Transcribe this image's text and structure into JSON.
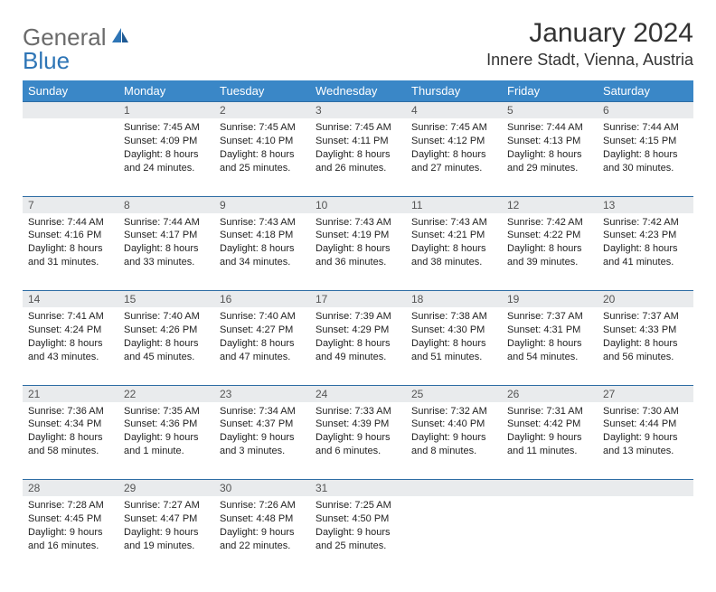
{
  "logo": {
    "general": "General",
    "blue": "Blue"
  },
  "title": "January 2024",
  "location": "Innere Stadt, Vienna, Austria",
  "colors": {
    "header_bg": "#3a87c7",
    "header_text": "#ffffff",
    "daynum_bg": "#e9ebed",
    "row_divider": "#2e6da4",
    "logo_blue": "#2e75b6",
    "logo_gray": "#6b6b6b"
  },
  "weekdays": [
    "Sunday",
    "Monday",
    "Tuesday",
    "Wednesday",
    "Thursday",
    "Friday",
    "Saturday"
  ],
  "weeks": [
    {
      "nums": [
        "",
        "1",
        "2",
        "3",
        "4",
        "5",
        "6"
      ],
      "cells": [
        {},
        {
          "sunrise": "Sunrise: 7:45 AM",
          "sunset": "Sunset: 4:09 PM",
          "daylight1": "Daylight: 8 hours",
          "daylight2": "and 24 minutes."
        },
        {
          "sunrise": "Sunrise: 7:45 AM",
          "sunset": "Sunset: 4:10 PM",
          "daylight1": "Daylight: 8 hours",
          "daylight2": "and 25 minutes."
        },
        {
          "sunrise": "Sunrise: 7:45 AM",
          "sunset": "Sunset: 4:11 PM",
          "daylight1": "Daylight: 8 hours",
          "daylight2": "and 26 minutes."
        },
        {
          "sunrise": "Sunrise: 7:45 AM",
          "sunset": "Sunset: 4:12 PM",
          "daylight1": "Daylight: 8 hours",
          "daylight2": "and 27 minutes."
        },
        {
          "sunrise": "Sunrise: 7:44 AM",
          "sunset": "Sunset: 4:13 PM",
          "daylight1": "Daylight: 8 hours",
          "daylight2": "and 29 minutes."
        },
        {
          "sunrise": "Sunrise: 7:44 AM",
          "sunset": "Sunset: 4:15 PM",
          "daylight1": "Daylight: 8 hours",
          "daylight2": "and 30 minutes."
        }
      ]
    },
    {
      "nums": [
        "7",
        "8",
        "9",
        "10",
        "11",
        "12",
        "13"
      ],
      "cells": [
        {
          "sunrise": "Sunrise: 7:44 AM",
          "sunset": "Sunset: 4:16 PM",
          "daylight1": "Daylight: 8 hours",
          "daylight2": "and 31 minutes."
        },
        {
          "sunrise": "Sunrise: 7:44 AM",
          "sunset": "Sunset: 4:17 PM",
          "daylight1": "Daylight: 8 hours",
          "daylight2": "and 33 minutes."
        },
        {
          "sunrise": "Sunrise: 7:43 AM",
          "sunset": "Sunset: 4:18 PM",
          "daylight1": "Daylight: 8 hours",
          "daylight2": "and 34 minutes."
        },
        {
          "sunrise": "Sunrise: 7:43 AM",
          "sunset": "Sunset: 4:19 PM",
          "daylight1": "Daylight: 8 hours",
          "daylight2": "and 36 minutes."
        },
        {
          "sunrise": "Sunrise: 7:43 AM",
          "sunset": "Sunset: 4:21 PM",
          "daylight1": "Daylight: 8 hours",
          "daylight2": "and 38 minutes."
        },
        {
          "sunrise": "Sunrise: 7:42 AM",
          "sunset": "Sunset: 4:22 PM",
          "daylight1": "Daylight: 8 hours",
          "daylight2": "and 39 minutes."
        },
        {
          "sunrise": "Sunrise: 7:42 AM",
          "sunset": "Sunset: 4:23 PM",
          "daylight1": "Daylight: 8 hours",
          "daylight2": "and 41 minutes."
        }
      ]
    },
    {
      "nums": [
        "14",
        "15",
        "16",
        "17",
        "18",
        "19",
        "20"
      ],
      "cells": [
        {
          "sunrise": "Sunrise: 7:41 AM",
          "sunset": "Sunset: 4:24 PM",
          "daylight1": "Daylight: 8 hours",
          "daylight2": "and 43 minutes."
        },
        {
          "sunrise": "Sunrise: 7:40 AM",
          "sunset": "Sunset: 4:26 PM",
          "daylight1": "Daylight: 8 hours",
          "daylight2": "and 45 minutes."
        },
        {
          "sunrise": "Sunrise: 7:40 AM",
          "sunset": "Sunset: 4:27 PM",
          "daylight1": "Daylight: 8 hours",
          "daylight2": "and 47 minutes."
        },
        {
          "sunrise": "Sunrise: 7:39 AM",
          "sunset": "Sunset: 4:29 PM",
          "daylight1": "Daylight: 8 hours",
          "daylight2": "and 49 minutes."
        },
        {
          "sunrise": "Sunrise: 7:38 AM",
          "sunset": "Sunset: 4:30 PM",
          "daylight1": "Daylight: 8 hours",
          "daylight2": "and 51 minutes."
        },
        {
          "sunrise": "Sunrise: 7:37 AM",
          "sunset": "Sunset: 4:31 PM",
          "daylight1": "Daylight: 8 hours",
          "daylight2": "and 54 minutes."
        },
        {
          "sunrise": "Sunrise: 7:37 AM",
          "sunset": "Sunset: 4:33 PM",
          "daylight1": "Daylight: 8 hours",
          "daylight2": "and 56 minutes."
        }
      ]
    },
    {
      "nums": [
        "21",
        "22",
        "23",
        "24",
        "25",
        "26",
        "27"
      ],
      "cells": [
        {
          "sunrise": "Sunrise: 7:36 AM",
          "sunset": "Sunset: 4:34 PM",
          "daylight1": "Daylight: 8 hours",
          "daylight2": "and 58 minutes."
        },
        {
          "sunrise": "Sunrise: 7:35 AM",
          "sunset": "Sunset: 4:36 PM",
          "daylight1": "Daylight: 9 hours",
          "daylight2": "and 1 minute."
        },
        {
          "sunrise": "Sunrise: 7:34 AM",
          "sunset": "Sunset: 4:37 PM",
          "daylight1": "Daylight: 9 hours",
          "daylight2": "and 3 minutes."
        },
        {
          "sunrise": "Sunrise: 7:33 AM",
          "sunset": "Sunset: 4:39 PM",
          "daylight1": "Daylight: 9 hours",
          "daylight2": "and 6 minutes."
        },
        {
          "sunrise": "Sunrise: 7:32 AM",
          "sunset": "Sunset: 4:40 PM",
          "daylight1": "Daylight: 9 hours",
          "daylight2": "and 8 minutes."
        },
        {
          "sunrise": "Sunrise: 7:31 AM",
          "sunset": "Sunset: 4:42 PM",
          "daylight1": "Daylight: 9 hours",
          "daylight2": "and 11 minutes."
        },
        {
          "sunrise": "Sunrise: 7:30 AM",
          "sunset": "Sunset: 4:44 PM",
          "daylight1": "Daylight: 9 hours",
          "daylight2": "and 13 minutes."
        }
      ]
    },
    {
      "nums": [
        "28",
        "29",
        "30",
        "31",
        "",
        "",
        ""
      ],
      "cells": [
        {
          "sunrise": "Sunrise: 7:28 AM",
          "sunset": "Sunset: 4:45 PM",
          "daylight1": "Daylight: 9 hours",
          "daylight2": "and 16 minutes."
        },
        {
          "sunrise": "Sunrise: 7:27 AM",
          "sunset": "Sunset: 4:47 PM",
          "daylight1": "Daylight: 9 hours",
          "daylight2": "and 19 minutes."
        },
        {
          "sunrise": "Sunrise: 7:26 AM",
          "sunset": "Sunset: 4:48 PM",
          "daylight1": "Daylight: 9 hours",
          "daylight2": "and 22 minutes."
        },
        {
          "sunrise": "Sunrise: 7:25 AM",
          "sunset": "Sunset: 4:50 PM",
          "daylight1": "Daylight: 9 hours",
          "daylight2": "and 25 minutes."
        },
        {},
        {},
        {}
      ]
    }
  ]
}
